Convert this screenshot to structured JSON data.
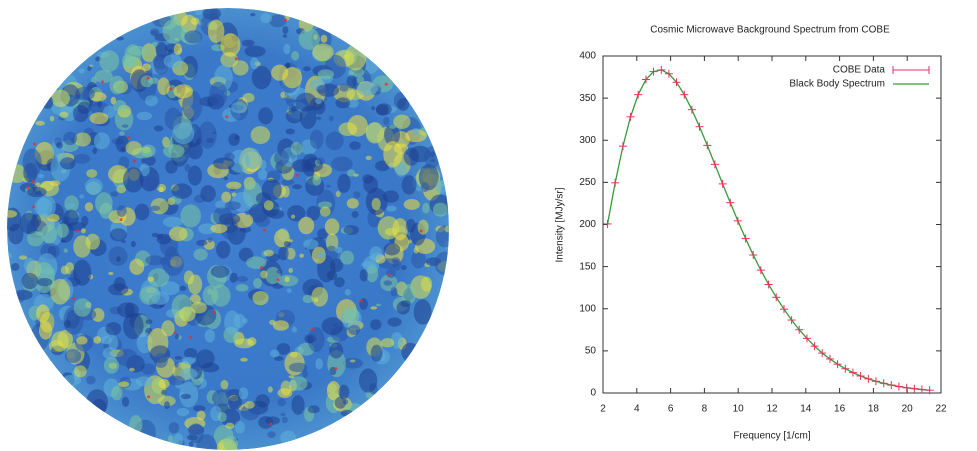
{
  "chart_data": {
    "type": "line",
    "title": "Cosmic Microwave Background Spectrum from COBE",
    "x_label": "Frequency [1/cm]",
    "y_label": "Intensity [MJy/sr]",
    "x": [
      2.27,
      2.72,
      3.18,
      3.63,
      4.08,
      4.54,
      4.99,
      5.45,
      5.9,
      6.35,
      6.81,
      7.26,
      7.71,
      8.17,
      8.62,
      9.08,
      9.53,
      9.98,
      10.44,
      10.89,
      11.34,
      11.8,
      12.25,
      12.71,
      13.16,
      13.61,
      14.07,
      14.52,
      14.97,
      15.43,
      15.88,
      16.34,
      16.79,
      17.24,
      17.7,
      18.15,
      18.61,
      19.06,
      19.51,
      19.97,
      20.42,
      20.87,
      21.33
    ],
    "series": [
      {
        "name": "COBE Data",
        "color": "#e8305e",
        "marker": "plus",
        "values": [
          200.7,
          249.5,
          293.0,
          327.8,
          354.1,
          372.1,
          381.5,
          383.5,
          378.9,
          368.8,
          354.1,
          336.3,
          316.1,
          293.9,
          271.4,
          248.2,
          225.9,
          204.3,
          183.3,
          163.8,
          145.8,
          128.8,
          113.6,
          99.5,
          86.6,
          75.1,
          64.8,
          55.6,
          47.4,
          40.4,
          34.2,
          28.8,
          24.2,
          20.2,
          16.8,
          13.9,
          11.5,
          9.4,
          7.7,
          6.2,
          5.1,
          4.1,
          3.3
        ]
      },
      {
        "name": "Black Body Spectrum",
        "color": "#3a9a3a",
        "marker": "line",
        "values": [
          200.7,
          249.5,
          293.0,
          327.8,
          354.1,
          372.1,
          381.5,
          383.5,
          378.9,
          368.8,
          354.1,
          336.3,
          316.1,
          293.9,
          271.4,
          248.2,
          225.9,
          204.3,
          183.3,
          163.8,
          145.8,
          128.8,
          113.6,
          99.5,
          86.6,
          75.1,
          64.8,
          55.6,
          47.4,
          40.4,
          34.2,
          28.8,
          24.2,
          20.2,
          16.8,
          13.9,
          11.5,
          9.4,
          7.7,
          6.2,
          5.1,
          4.1,
          3.3
        ]
      }
    ],
    "xlim": [
      2,
      22
    ],
    "xticks": [
      2,
      4,
      6,
      8,
      10,
      12,
      14,
      16,
      18,
      20,
      22
    ],
    "ylim": [
      0,
      400
    ],
    "yticks": [
      0,
      50,
      100,
      150,
      200,
      250,
      300,
      350,
      400
    ],
    "legend": "top-right"
  }
}
